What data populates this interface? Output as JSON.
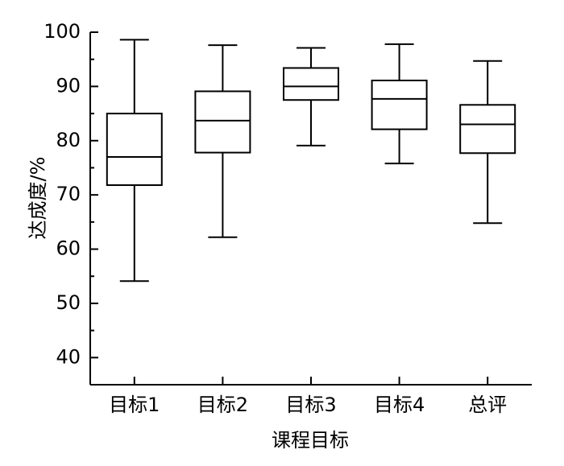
{
  "chart_data": {
    "type": "box",
    "xlabel": "课程目标",
    "ylabel": "达成度/%",
    "ylim": [
      35,
      100
    ],
    "yticks": [
      40,
      50,
      60,
      70,
      80,
      90,
      100
    ],
    "yminor_ticks": [
      45,
      55,
      65,
      75,
      85,
      95
    ],
    "categories": [
      "目标1",
      "目标2",
      "目标3",
      "目标4",
      "总评"
    ],
    "boxes": [
      {
        "category": "目标1",
        "min": 54.1,
        "q1": 71.8,
        "median": 77.0,
        "q3": 85.0,
        "max": 98.6
      },
      {
        "category": "目标2",
        "min": 62.2,
        "q1": 77.8,
        "median": 83.7,
        "q3": 89.1,
        "max": 97.6
      },
      {
        "category": "目标3",
        "min": 79.1,
        "q1": 87.5,
        "median": 90.0,
        "q3": 93.4,
        "max": 97.1
      },
      {
        "category": "目标4",
        "min": 75.8,
        "q1": 82.1,
        "median": 87.7,
        "q3": 91.1,
        "max": 97.8
      },
      {
        "category": "总评",
        "min": 64.8,
        "q1": 77.7,
        "median": 83.0,
        "q3": 86.6,
        "max": 94.7
      }
    ]
  }
}
